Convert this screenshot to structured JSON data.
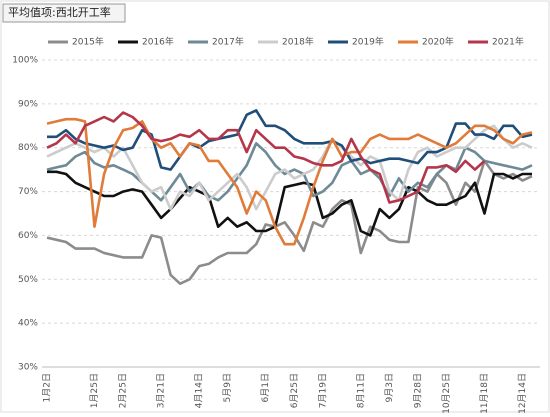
{
  "chart_data": {
    "type": "line",
    "title": "平均值项:西北开工率",
    "categories": [
      "1月2日",
      null,
      null,
      null,
      null,
      "1月25日",
      null,
      null,
      "2月25日",
      null,
      null,
      null,
      "3月21日",
      null,
      null,
      null,
      "4月14日",
      null,
      null,
      "5月9日",
      null,
      null,
      null,
      "6月1日",
      null,
      null,
      "6月25日",
      null,
      null,
      "7月19日",
      null,
      null,
      null,
      "8月11日",
      null,
      null,
      "9月3日",
      null,
      null,
      "9月28日",
      null,
      null,
      "10月25日",
      null,
      null,
      null,
      "11月18日",
      null,
      null,
      null,
      "12月14日",
      null
    ],
    "ylim": [
      30,
      100
    ],
    "yticks": [
      {
        "value": 30,
        "label": "30%"
      },
      {
        "value": 40,
        "label": "40%"
      },
      {
        "value": 50,
        "label": "50%"
      },
      {
        "value": 60,
        "label": "60%"
      },
      {
        "value": 70,
        "label": "70%"
      },
      {
        "value": 80,
        "label": "80%"
      },
      {
        "value": 90,
        "label": "90%"
      },
      {
        "value": 100,
        "label": "100%"
      }
    ],
    "grid": true,
    "series": [
      {
        "name": "2015年",
        "color": "#8c8c8c",
        "values": [
          59.5,
          59,
          58.5,
          57,
          57,
          57,
          56,
          55.5,
          55,
          55,
          55,
          60,
          59.5,
          51,
          49,
          50,
          53,
          53.5,
          55,
          56,
          56,
          56,
          58,
          62.5,
          62,
          63,
          60,
          56.5,
          63,
          62,
          66,
          68,
          67,
          56,
          62,
          61,
          59,
          58.5,
          58.5,
          71,
          70,
          74,
          72,
          67,
          72,
          70,
          77,
          74,
          73,
          74,
          72.5,
          73.5
        ]
      },
      {
        "name": "2016年",
        "color": "#111111",
        "values": [
          74.5,
          74.5,
          74,
          72,
          71,
          70,
          69,
          69,
          70,
          70.5,
          70,
          67,
          64,
          66,
          68.5,
          71,
          70,
          69,
          62,
          64,
          62,
          63,
          61,
          61,
          62,
          71,
          71.5,
          72,
          71.5,
          64,
          65,
          67,
          68,
          61,
          60,
          66,
          64,
          66,
          71,
          70,
          68,
          67,
          67,
          68,
          69,
          72,
          65,
          74,
          74,
          73,
          74,
          74
        ]
      },
      {
        "name": "2017年",
        "color": "#6d8a96",
        "values": [
          75,
          75.5,
          76,
          78,
          79,
          76.5,
          75.5,
          76,
          75,
          74,
          72,
          70,
          68,
          71,
          74,
          70,
          72,
          69,
          68,
          70,
          73,
          76,
          81,
          79,
          76,
          74,
          75,
          74,
          69,
          70,
          72,
          76,
          77,
          74,
          75,
          73,
          69,
          73,
          70,
          72,
          71,
          74,
          76,
          75,
          80,
          79,
          77,
          76.5,
          76,
          75.5,
          75,
          76
        ]
      },
      {
        "name": "2018年",
        "color": "#cccccc",
        "values": [
          78,
          79,
          80,
          81,
          80,
          79,
          80,
          78,
          80,
          76,
          72,
          70,
          71,
          66,
          70,
          69,
          72,
          68,
          70,
          72,
          74,
          71,
          66,
          70,
          74,
          75,
          73,
          74,
          75,
          78,
          82,
          80,
          78,
          76,
          78,
          77,
          70,
          68,
          75,
          79,
          80,
          78,
          79,
          80,
          80,
          82,
          84,
          85,
          82,
          80,
          81,
          80
        ]
      },
      {
        "name": "2019年",
        "color": "#1f4e79",
        "values": [
          82.5,
          82.5,
          84,
          82,
          81,
          80.5,
          80,
          80.5,
          79.5,
          80,
          84,
          83,
          75.5,
          75,
          78,
          81,
          80,
          81.5,
          82,
          82.5,
          83,
          87.5,
          88.5,
          85,
          85,
          84,
          82,
          81,
          81,
          81,
          81.5,
          80.5,
          77,
          77.5,
          76.5,
          77,
          77.5,
          77.5,
          77,
          76.5,
          79,
          79,
          80,
          85.5,
          85.5,
          83,
          83,
          82,
          85,
          85,
          82.5,
          83
        ]
      },
      {
        "name": "2020年",
        "color": "#e07b39",
        "values": [
          85.5,
          86,
          86.5,
          86.5,
          86,
          62,
          74,
          80,
          84,
          84.5,
          86,
          82,
          80,
          81,
          78,
          81,
          80.5,
          77,
          77,
          74,
          71,
          65,
          70,
          68,
          62,
          58,
          58,
          64,
          71,
          77,
          82,
          78,
          79,
          79,
          82,
          83,
          82,
          82,
          82,
          83,
          82,
          81,
          80,
          81,
          83,
          85,
          85,
          84,
          82,
          81,
          83,
          83.5
        ]
      },
      {
        "name": "2021年",
        "color": "#b5364b",
        "values": [
          80,
          81,
          83,
          81,
          85,
          86,
          87,
          86,
          88,
          87,
          85,
          82,
          81.5,
          82,
          83,
          82.5,
          84,
          82,
          82,
          84,
          84,
          79,
          84,
          82,
          80,
          80,
          78,
          77.5,
          76.5,
          76,
          76,
          77,
          82,
          78,
          75,
          74,
          67.5,
          68,
          69,
          70,
          75.5,
          75.5,
          76,
          74.5,
          77,
          75,
          77,
          null,
          null,
          null,
          null,
          null
        ]
      }
    ]
  }
}
